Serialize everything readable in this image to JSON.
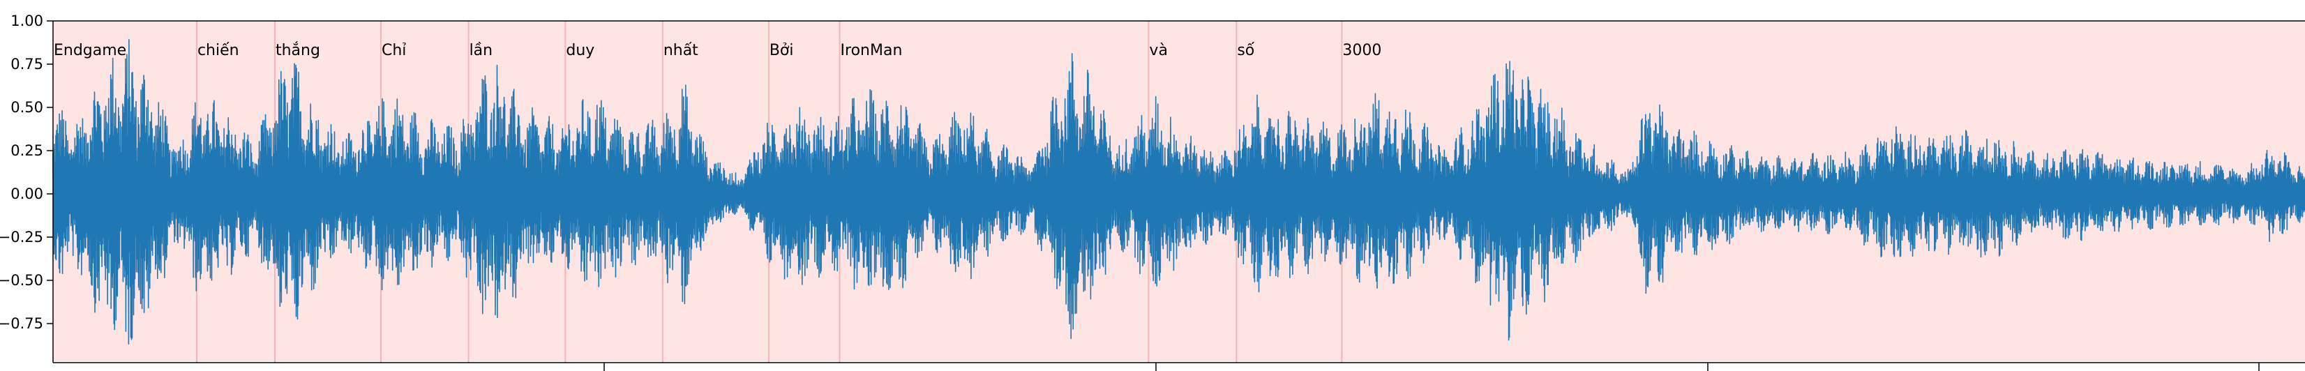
{
  "chart_data": {
    "type": "line",
    "title": "",
    "xlabel": "",
    "ylabel": "",
    "ylim": [
      -1.0,
      1.0
    ],
    "yticks": [
      1.0,
      0.75,
      0.5,
      0.25,
      0.0,
      -0.25,
      -0.5,
      -0.75
    ],
    "ytick_labels": [
      "1.00",
      "0.75",
      "0.50",
      "0.25",
      "0.00",
      "−0.25",
      "−0.50",
      "−0.75"
    ],
    "xlim": [
      0,
      1
    ],
    "grid": false,
    "legend": "none",
    "colors": {
      "waveform": "#1f77b4",
      "background": "#ffe4e4",
      "segment_line": "#f4b6b6",
      "axis": "#000000"
    },
    "words": [
      {
        "text": "Endgame",
        "start": 0.0
      },
      {
        "text": "chiến",
        "start": 0.0638
      },
      {
        "text": "thắng",
        "start": 0.0985
      },
      {
        "text": "Chỉ",
        "start": 0.1456
      },
      {
        "text": "lần",
        "start": 0.1845
      },
      {
        "text": "duy",
        "start": 0.2275
      },
      {
        "text": "nhất",
        "start": 0.2707
      },
      {
        "text": "Bởi",
        "start": 0.3178
      },
      {
        "text": "IronMan",
        "start": 0.3493
      },
      {
        "text": "và",
        "start": 0.4865
      },
      {
        "text": "số",
        "start": 0.5255
      },
      {
        "text": "3000",
        "start": 0.5723
      }
    ],
    "envelope": [
      {
        "x": 0.0,
        "amp": 0.55
      },
      {
        "x": 0.01,
        "amp": 0.45
      },
      {
        "x": 0.022,
        "amp": 0.78
      },
      {
        "x": 0.035,
        "amp": 0.92
      },
      {
        "x": 0.045,
        "amp": 0.68
      },
      {
        "x": 0.055,
        "amp": 0.3
      },
      {
        "x": 0.065,
        "amp": 0.62
      },
      {
        "x": 0.078,
        "amp": 0.5
      },
      {
        "x": 0.09,
        "amp": 0.32
      },
      {
        "x": 0.105,
        "amp": 0.88
      },
      {
        "x": 0.118,
        "amp": 0.52
      },
      {
        "x": 0.13,
        "amp": 0.35
      },
      {
        "x": 0.15,
        "amp": 0.62
      },
      {
        "x": 0.165,
        "amp": 0.45
      },
      {
        "x": 0.18,
        "amp": 0.4
      },
      {
        "x": 0.195,
        "amp": 0.86
      },
      {
        "x": 0.21,
        "amp": 0.52
      },
      {
        "x": 0.225,
        "amp": 0.42
      },
      {
        "x": 0.24,
        "amp": 0.63
      },
      {
        "x": 0.255,
        "amp": 0.42
      },
      {
        "x": 0.27,
        "amp": 0.45
      },
      {
        "x": 0.28,
        "amp": 0.68
      },
      {
        "x": 0.29,
        "amp": 0.28
      },
      {
        "x": 0.305,
        "amp": 0.1
      },
      {
        "x": 0.315,
        "amp": 0.4
      },
      {
        "x": 0.33,
        "amp": 0.55
      },
      {
        "x": 0.345,
        "amp": 0.45
      },
      {
        "x": 0.36,
        "amp": 0.62
      },
      {
        "x": 0.375,
        "amp": 0.6
      },
      {
        "x": 0.39,
        "amp": 0.32
      },
      {
        "x": 0.405,
        "amp": 0.55
      },
      {
        "x": 0.418,
        "amp": 0.32
      },
      {
        "x": 0.435,
        "amp": 0.2
      },
      {
        "x": 0.45,
        "amp": 0.88
      },
      {
        "x": 0.462,
        "amp": 0.7
      },
      {
        "x": 0.472,
        "amp": 0.3
      },
      {
        "x": 0.49,
        "amp": 0.58
      },
      {
        "x": 0.505,
        "amp": 0.35
      },
      {
        "x": 0.52,
        "amp": 0.25
      },
      {
        "x": 0.535,
        "amp": 0.58
      },
      {
        "x": 0.55,
        "amp": 0.5
      },
      {
        "x": 0.57,
        "amp": 0.4
      },
      {
        "x": 0.588,
        "amp": 0.62
      },
      {
        "x": 0.6,
        "amp": 0.55
      },
      {
        "x": 0.618,
        "amp": 0.28
      },
      {
        "x": 0.63,
        "amp": 0.48
      },
      {
        "x": 0.645,
        "amp": 0.88
      },
      {
        "x": 0.665,
        "amp": 0.6
      },
      {
        "x": 0.685,
        "amp": 0.28
      },
      {
        "x": 0.7,
        "amp": 0.14
      },
      {
        "x": 0.708,
        "amp": 0.65
      },
      {
        "x": 0.72,
        "amp": 0.42
      },
      {
        "x": 0.74,
        "amp": 0.32
      },
      {
        "x": 0.76,
        "amp": 0.22
      },
      {
        "x": 0.78,
        "amp": 0.24
      },
      {
        "x": 0.8,
        "amp": 0.25
      },
      {
        "x": 0.815,
        "amp": 0.42
      },
      {
        "x": 0.84,
        "amp": 0.35
      },
      {
        "x": 0.86,
        "amp": 0.4
      },
      {
        "x": 0.88,
        "amp": 0.25
      },
      {
        "x": 0.9,
        "amp": 0.28
      },
      {
        "x": 0.92,
        "amp": 0.22
      },
      {
        "x": 0.95,
        "amp": 0.2
      },
      {
        "x": 0.975,
        "amp": 0.16
      },
      {
        "x": 0.985,
        "amp": 0.3
      },
      {
        "x": 1.0,
        "amp": 0.15
      }
    ]
  }
}
